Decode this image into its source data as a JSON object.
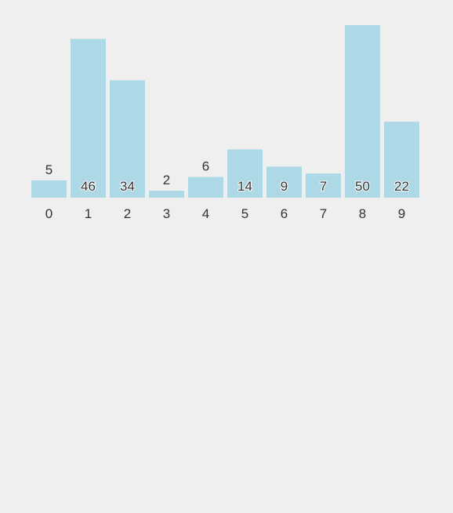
{
  "chart_data": {
    "type": "bar",
    "categories": [
      "0",
      "1",
      "2",
      "3",
      "4",
      "5",
      "6",
      "7",
      "8",
      "9"
    ],
    "values": [
      5,
      46,
      34,
      2,
      6,
      14,
      9,
      7,
      50,
      22
    ],
    "title": "",
    "xlabel": "",
    "ylabel": "",
    "ylim": [
      0,
      50
    ],
    "grid": false,
    "legend": "none",
    "bar_color": "#add8e6",
    "text_color": "#333333",
    "background": "#efefef"
  }
}
